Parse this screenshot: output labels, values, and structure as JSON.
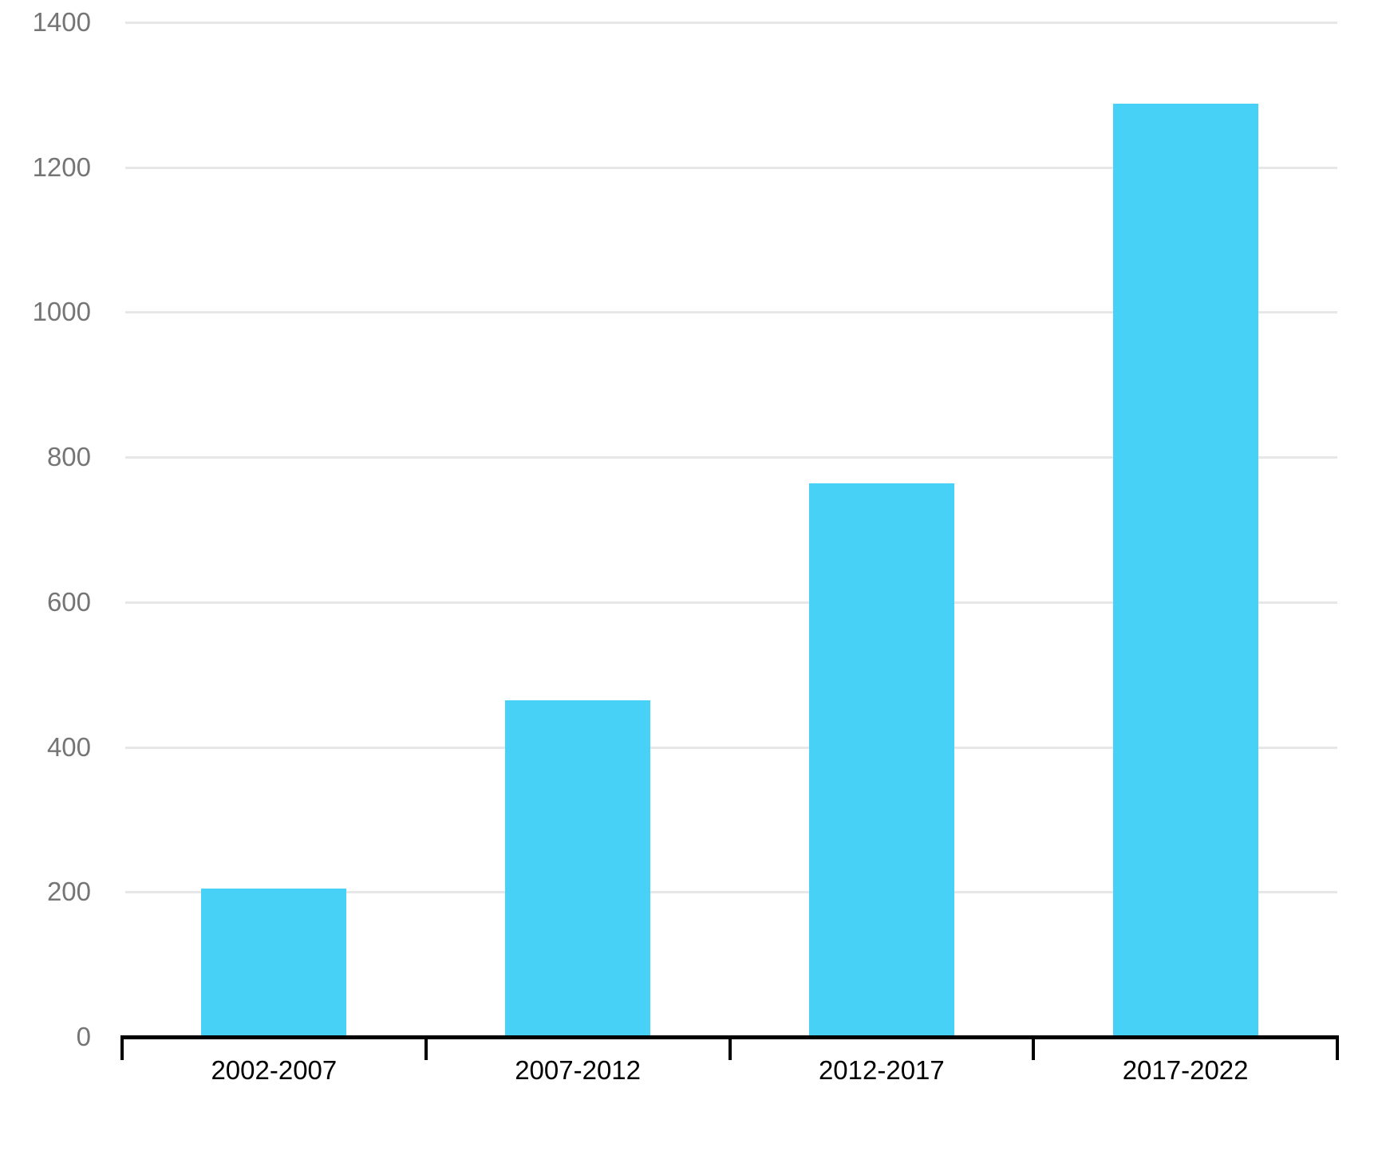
{
  "chart_data": {
    "type": "bar",
    "title": "",
    "xlabel": "",
    "ylabel": "",
    "categories": [
      "2002-2007",
      "2007-2012",
      "2012-2017",
      "2017-2022"
    ],
    "values": [
      202,
      462,
      762,
      1285
    ],
    "ylim": [
      0,
      1400
    ],
    "y_ticks": [
      0,
      200,
      400,
      600,
      800,
      1000,
      1200,
      1400
    ],
    "y_tick_labels": [
      "0",
      "200",
      "400",
      "600",
      "800",
      "1000",
      "1200",
      "1400"
    ],
    "grid": true,
    "legend": false,
    "colors": {
      "bar": "#48D1F7",
      "gridline": "#E7E7E7",
      "axis": "#000000",
      "y_tick_label": "#757575",
      "x_tick_label": "#000000",
      "background": "#FFFFFF"
    }
  }
}
